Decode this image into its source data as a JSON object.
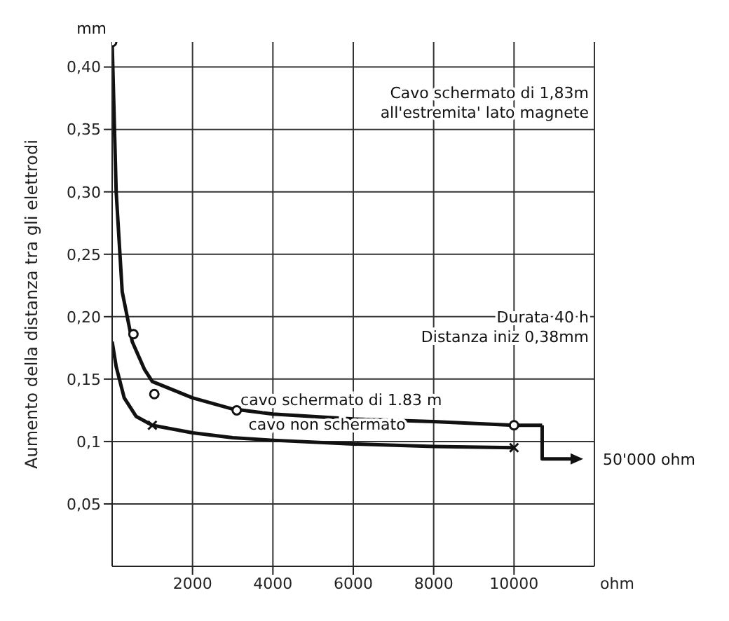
{
  "chart_data": {
    "type": "line",
    "ylabel": "Aumento della distanza tra gli elettrodi",
    "xlabel": "ohm",
    "xlim": [
      0,
      12000
    ],
    "xticks": [
      2000,
      4000,
      6000,
      8000,
      10000
    ],
    "ylim": [
      0,
      0.42
    ],
    "yticks": [
      {
        "value": 0.05,
        "label": "0,05"
      },
      {
        "value": 0.1,
        "label": "0,1"
      },
      {
        "value": 0.15,
        "label": "0,15"
      },
      {
        "value": 0.2,
        "label": "0,20"
      },
      {
        "value": 0.25,
        "label": "0,25"
      },
      {
        "value": 0.3,
        "label": "0,30"
      },
      {
        "value": 0.35,
        "label": "0,35"
      },
      {
        "value": 0.4,
        "label": "0,40"
      }
    ],
    "grid": true,
    "line_style": "solid",
    "series": [
      {
        "name": "cavo schermato di 1.83 m",
        "color": "#111111",
        "marker": "none",
        "x": [
          0,
          100,
          250,
          500,
          800,
          1000,
          2000,
          3000,
          4000,
          6000,
          8000,
          10000,
          10700
        ],
        "values": [
          0.42,
          0.3,
          0.22,
          0.18,
          0.158,
          0.148,
          0.135,
          0.126,
          0.122,
          0.118,
          0.116,
          0.113,
          0.113
        ]
      },
      {
        "name": "cavo non schermato",
        "color": "#111111",
        "marker": "none",
        "x": [
          0,
          100,
          300,
          600,
          1000,
          2000,
          3000,
          4000,
          6000,
          8000,
          10000
        ],
        "values": [
          0.18,
          0.16,
          0.135,
          0.12,
          0.113,
          0.107,
          0.103,
          0.101,
          0.098,
          0.096,
          0.095
        ]
      },
      {
        "type": "scatter",
        "color": "#111111",
        "marker": "circle",
        "x": [
          0,
          530,
          1050,
          3100,
          10000
        ],
        "values": [
          0.42,
          0.186,
          0.138,
          0.125,
          0.113
        ]
      },
      {
        "type": "scatter",
        "color": "#111111",
        "marker": "cross",
        "x": [
          1000,
          10000
        ],
        "values": [
          0.113,
          0.095
        ]
      }
    ],
    "annotations": [
      "Cavo schermato di 1,83m\nall'estremita' lato magnete",
      "Durata 40 h\nDistanza iniz 0,38mm",
      "mm",
      "50'000 ohm"
    ]
  }
}
